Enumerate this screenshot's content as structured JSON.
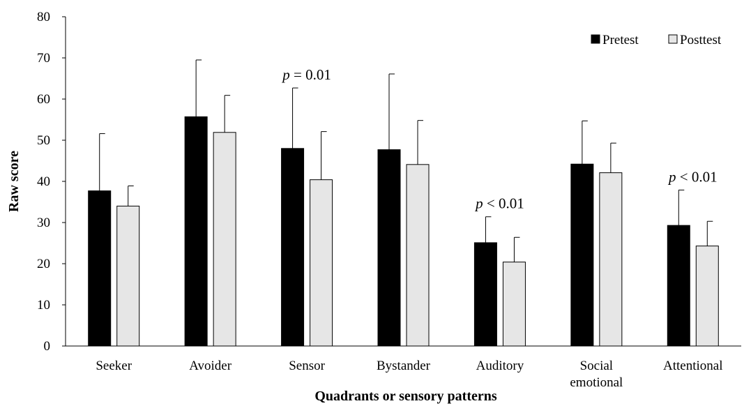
{
  "chart_data": {
    "type": "bar",
    "xlabel": "Quadrants or sensory patterns",
    "ylabel": "Raw score",
    "ylim": [
      0,
      80
    ],
    "yticks": [
      0,
      10,
      20,
      30,
      40,
      50,
      60,
      70,
      80
    ],
    "grid": false,
    "legend_position": "top-right",
    "categories": [
      [
        "Seeker"
      ],
      [
        "Avoider"
      ],
      [
        "Sensor"
      ],
      [
        "Bystander"
      ],
      [
        "Auditory"
      ],
      [
        "Social",
        "emotional"
      ],
      [
        "Attentional"
      ]
    ],
    "series": [
      {
        "name": "Pretest",
        "color": "#000000",
        "values": [
          37.7,
          55.7,
          48.0,
          47.7,
          25.1,
          44.2,
          29.3
        ],
        "error": [
          13.9,
          13.8,
          14.7,
          18.4,
          6.3,
          10.5,
          8.6
        ]
      },
      {
        "name": "Posttest",
        "color": "#e6e6e6",
        "values": [
          34.0,
          51.9,
          40.4,
          44.1,
          20.4,
          42.1,
          24.3
        ],
        "error": [
          4.9,
          9.0,
          11.7,
          10.7,
          6.0,
          7.2,
          6.0
        ]
      }
    ],
    "annotations": [
      {
        "category_index": 2,
        "p": "p",
        "text": " = 0.01"
      },
      {
        "category_index": 4,
        "p": "p",
        "text": " < 0.01"
      },
      {
        "category_index": 6,
        "p": "p",
        "text": " < 0.01"
      }
    ]
  }
}
